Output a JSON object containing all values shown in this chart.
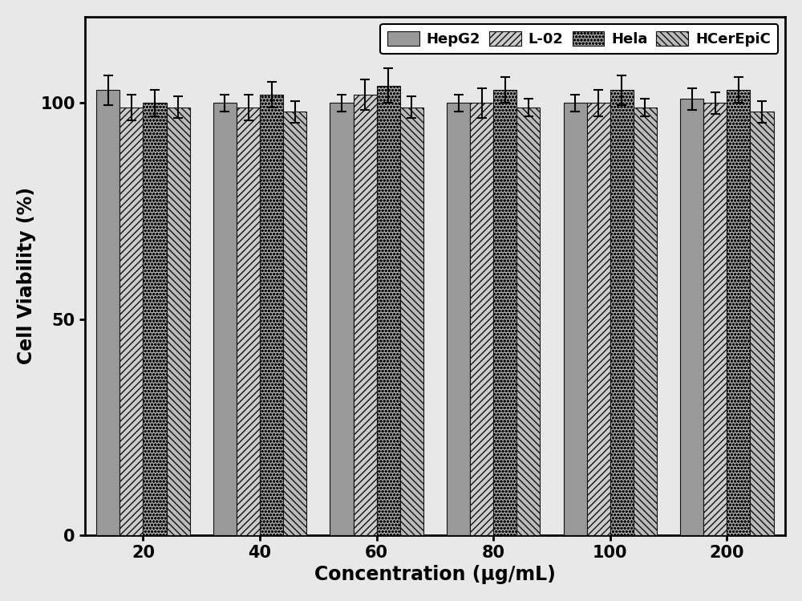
{
  "categories": [
    "20",
    "40",
    "60",
    "80",
    "100",
    "200"
  ],
  "xlabel": "Concentration (μg/mL)",
  "ylabel": "Cell Viability (%)",
  "ylim": [
    0,
    120
  ],
  "yticks": [
    0,
    50,
    100
  ],
  "series": {
    "HepG2": {
      "values": [
        103,
        100,
        100,
        100,
        100,
        101
      ],
      "errors": [
        3.5,
        2.0,
        2.0,
        2.0,
        2.0,
        2.5
      ],
      "color": "#999999",
      "hatch": ""
    },
    "L-02": {
      "values": [
        99,
        99,
        102,
        100,
        100,
        100
      ],
      "errors": [
        3.0,
        3.0,
        3.5,
        3.5,
        3.0,
        2.5
      ],
      "color": "#cccccc",
      "hatch": "////"
    },
    "Hela": {
      "values": [
        100,
        102,
        104,
        103,
        103,
        103
      ],
      "errors": [
        3.0,
        3.0,
        4.0,
        3.0,
        3.5,
        3.0
      ],
      "color": "#aaaaaa",
      "hatch": "oooo"
    },
    "HCerEpiC": {
      "values": [
        99,
        98,
        99,
        99,
        99,
        98
      ],
      "errors": [
        2.5,
        2.5,
        2.5,
        2.0,
        2.0,
        2.5
      ],
      "color": "#bbbbbb",
      "hatch": "\\\\\\\\"
    }
  },
  "bar_width": 0.2,
  "legend_loc": "upper right",
  "font_size_label": 17,
  "font_size_tick": 15,
  "font_size_legend": 13,
  "edge_color": "#111111",
  "background_color": "#e8e8e8",
  "plot_bg_color": "#e8e8e8",
  "title": ""
}
